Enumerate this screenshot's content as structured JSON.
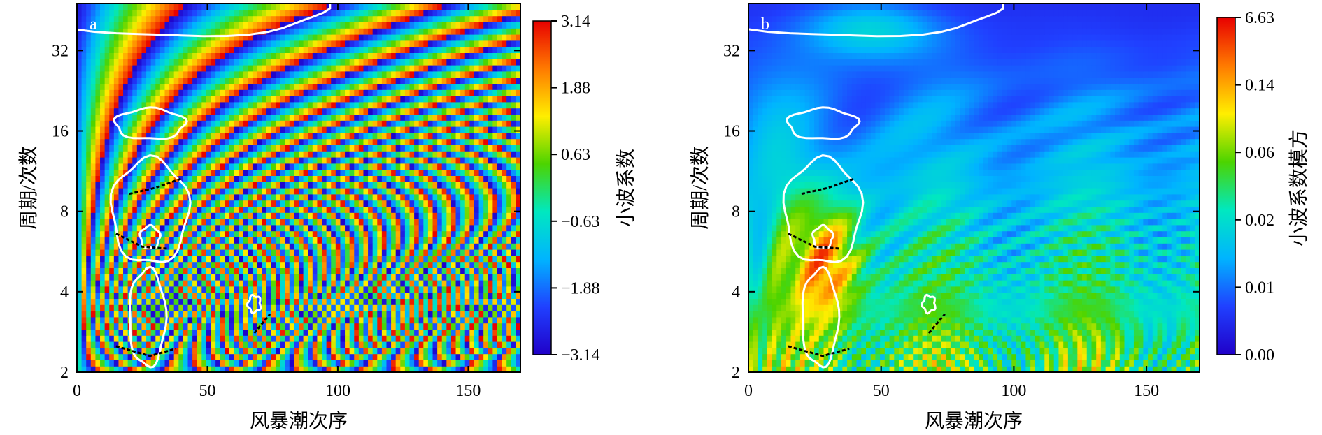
{
  "chart_data": [
    {
      "type": "heatmap",
      "panel_label": "a",
      "xlabel": "风暴潮次序",
      "ylabel": "周期/次数",
      "xlim": [
        0,
        170
      ],
      "x_ticks": [
        "0",
        "50",
        "100",
        "150"
      ],
      "x_tick_values": [
        0,
        50,
        100,
        150
      ],
      "y_scale": "log2",
      "ylim": [
        2,
        48
      ],
      "y_ticks": [
        "2",
        "4",
        "8",
        "16",
        "32"
      ],
      "y_tick_values": [
        2,
        4,
        8,
        16,
        32
      ],
      "colorbar": {
        "label": "小波系数",
        "ticks": [
          "3.14",
          "1.88",
          "0.63",
          "−0.63",
          "−1.88",
          "−3.14"
        ],
        "colors": [
          "#e80000",
          "#ff7a00",
          "#ffee00",
          "#4cd400",
          "#00e8c0",
          "#00b4ff",
          "#2040ff",
          "#2000c8"
        ]
      }
    },
    {
      "type": "heatmap",
      "panel_label": "b",
      "xlabel": "风暴潮次序",
      "ylabel": "周期/次数",
      "xlim": [
        0,
        170
      ],
      "x_ticks": [
        "0",
        "50",
        "100",
        "150"
      ],
      "x_tick_values": [
        0,
        50,
        100,
        150
      ],
      "y_scale": "log2",
      "ylim": [
        2,
        48
      ],
      "y_ticks": [
        "2",
        "4",
        "8",
        "16",
        "32"
      ],
      "y_tick_values": [
        2,
        4,
        8,
        16,
        32
      ],
      "colorbar": {
        "label": "小波系数模方",
        "ticks": [
          "6.63",
          "0.14",
          "0.06",
          "0.02",
          "0.01",
          "0.00"
        ],
        "colors": [
          "#e80000",
          "#ff7a00",
          "#ffee00",
          "#4cd400",
          "#00e8c0",
          "#00b4ff",
          "#2040ff",
          "#2000c8"
        ]
      }
    }
  ]
}
